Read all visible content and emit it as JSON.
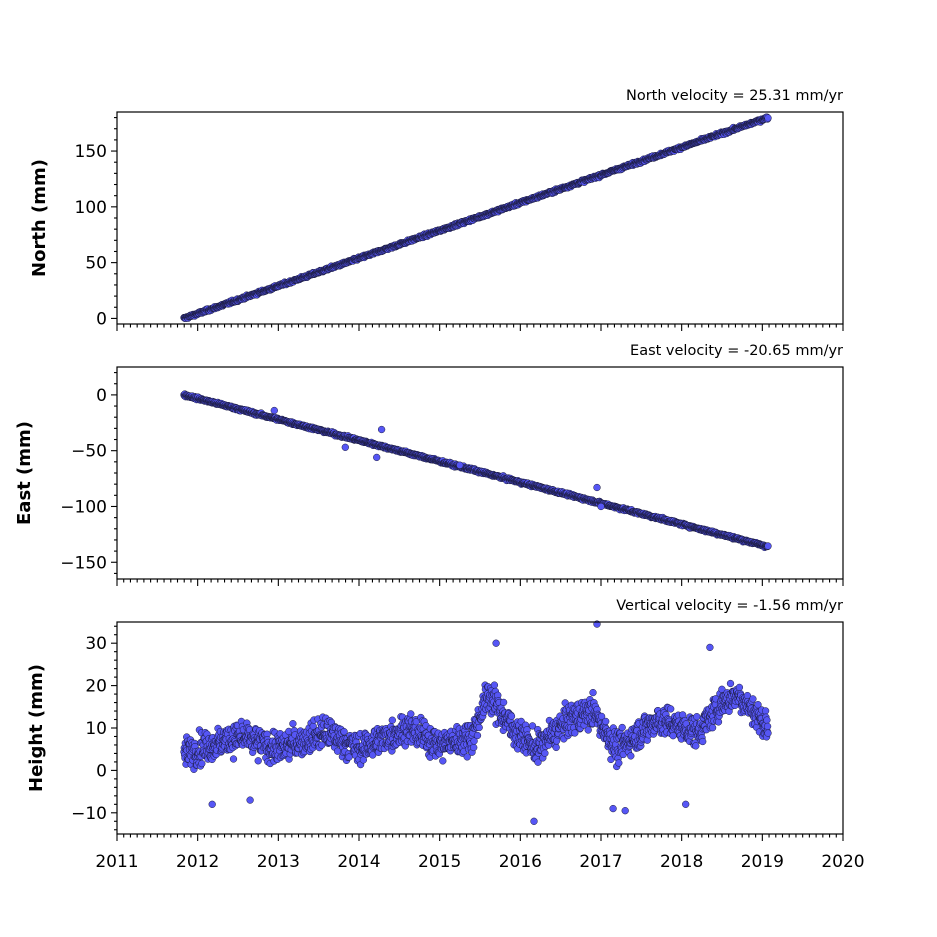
{
  "colors": {
    "marker_fill": "#5656f5",
    "marker_edge": "#1a1a3a",
    "axes": "#000000"
  },
  "chart_data": [
    {
      "type": "scatter",
      "title": "North velocity = 25.31 mm/yr",
      "xlabel": "",
      "ylabel": "North (mm)",
      "xlim": [
        2011,
        2020
      ],
      "ylim": [
        -5,
        185
      ],
      "yticks": [
        0,
        50,
        100,
        150
      ],
      "yticklabels": [
        "0",
        "50",
        "100",
        "150"
      ],
      "series": [
        {
          "x_start": 2011.83,
          "x_end": 2019.07,
          "y_start": 0,
          "y_end": 180,
          "noise": 1.6,
          "n": 1400,
          "outliers": []
        }
      ]
    },
    {
      "type": "scatter",
      "title": "East velocity = -20.65 mm/yr",
      "xlabel": "",
      "ylabel": "East (mm)",
      "xlim": [
        2011,
        2020
      ],
      "ylim": [
        -165,
        25
      ],
      "yticks": [
        -150,
        -100,
        -50,
        0
      ],
      "yticklabels": [
        "−150",
        "−100",
        "−50",
        "0"
      ],
      "series": [
        {
          "x_start": 2011.83,
          "x_end": 2019.07,
          "y_start": 0,
          "y_end": -136,
          "noise": 1.6,
          "n": 1400,
          "outliers": [
            [
              2012.95,
              -14
            ],
            [
              2013.83,
              -47
            ],
            [
              2014.28,
              -31
            ],
            [
              2014.22,
              -56
            ],
            [
              2016.95,
              -83
            ],
            [
              2017.0,
              -100
            ],
            [
              2015.25,
              -63
            ]
          ]
        }
      ]
    },
    {
      "type": "scatter",
      "title": "Vertical velocity = -1.56 mm/yr",
      "xlabel": "",
      "ylabel": "Height (mm)",
      "xlim": [
        2011,
        2020
      ],
      "ylim": [
        -15,
        35
      ],
      "yticks": [
        -10,
        0,
        10,
        20,
        30
      ],
      "yticklabels": [
        "−10",
        "0",
        "10",
        "20",
        "30"
      ],
      "xticks": [
        2011,
        2012,
        2013,
        2014,
        2015,
        2016,
        2017,
        2018,
        2019,
        2020
      ],
      "xticklabels": [
        "2011",
        "2012",
        "2013",
        "2014",
        "2015",
        "2016",
        "2017",
        "2018",
        "2019",
        "2020"
      ],
      "series": [
        {
          "x_start": 2011.83,
          "x_end": 2019.07,
          "n": 1700,
          "trend": [
            [
              2011.83,
              4
            ],
            [
              2012.5,
              8
            ],
            [
              2013.0,
              5
            ],
            [
              2013.6,
              9
            ],
            [
              2014.0,
              5
            ],
            [
              2014.6,
              10
            ],
            [
              2015.0,
              6
            ],
            [
              2015.4,
              8
            ],
            [
              2015.6,
              18
            ],
            [
              2015.9,
              10
            ],
            [
              2016.2,
              5
            ],
            [
              2016.6,
              12
            ],
            [
              2016.9,
              14
            ],
            [
              2017.2,
              5
            ],
            [
              2017.7,
              12
            ],
            [
              2018.2,
              9
            ],
            [
              2018.5,
              16
            ],
            [
              2018.7,
              18
            ],
            [
              2019.07,
              10
            ]
          ],
          "noise": 4.5,
          "outliers": [
            [
              2016.95,
              34.5
            ],
            [
              2016.17,
              -12
            ],
            [
              2017.15,
              -9
            ],
            [
              2017.3,
              -9.5
            ],
            [
              2012.18,
              -8
            ],
            [
              2012.65,
              -7
            ],
            [
              2018.05,
              -8
            ],
            [
              2015.7,
              30
            ],
            [
              2018.35,
              29
            ]
          ]
        }
      ]
    }
  ]
}
